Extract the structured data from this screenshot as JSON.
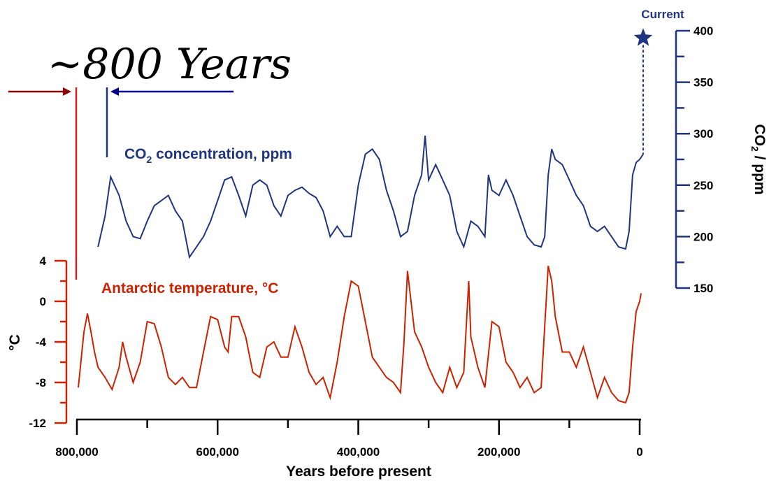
{
  "chart_data": {
    "type": "line",
    "annotation": "~800 Years",
    "xlabel": "Years before present",
    "x_ticks": [
      "800,000",
      "600,000",
      "400,000",
      "200,000",
      "0"
    ],
    "x_tick_values": [
      800000,
      600000,
      400000,
      200000,
      0
    ],
    "xlim": [
      800000,
      0
    ],
    "colors": {
      "co2": "#1f3580",
      "temperature": "#cc2200",
      "lag_marker_red": "#8b0000",
      "lag_marker_blue": "#00008b"
    },
    "co2": {
      "label": "CO",
      "label_sub": "2",
      "label_rest": " concentration, ppm",
      "axis_label": "CO",
      "axis_label_sub": "2",
      "axis_label_rest": " / ppm",
      "ylim": [
        150,
        400
      ],
      "ticks": [
        "400",
        "350",
        "300",
        "250",
        "200",
        "150"
      ],
      "tick_values": [
        400,
        350,
        300,
        250,
        200,
        150
      ],
      "current_label": "Current",
      "current_value": 393,
      "points": [
        [
          770000,
          190
        ],
        [
          760000,
          220
        ],
        [
          752000,
          258
        ],
        [
          740000,
          240
        ],
        [
          730000,
          215
        ],
        [
          720000,
          200
        ],
        [
          710000,
          198
        ],
        [
          700000,
          215
        ],
        [
          690000,
          230
        ],
        [
          680000,
          235
        ],
        [
          670000,
          240
        ],
        [
          660000,
          225
        ],
        [
          650000,
          215
        ],
        [
          640000,
          180
        ],
        [
          630000,
          190
        ],
        [
          620000,
          200
        ],
        [
          610000,
          215
        ],
        [
          600000,
          235
        ],
        [
          590000,
          255
        ],
        [
          580000,
          258
        ],
        [
          570000,
          240
        ],
        [
          560000,
          220
        ],
        [
          550000,
          250
        ],
        [
          540000,
          255
        ],
        [
          530000,
          250
        ],
        [
          520000,
          230
        ],
        [
          510000,
          220
        ],
        [
          500000,
          240
        ],
        [
          490000,
          245
        ],
        [
          480000,
          248
        ],
        [
          470000,
          242
        ],
        [
          460000,
          238
        ],
        [
          450000,
          225
        ],
        [
          440000,
          200
        ],
        [
          430000,
          210
        ],
        [
          420000,
          200
        ],
        [
          410000,
          200
        ],
        [
          400000,
          250
        ],
        [
          390000,
          280
        ],
        [
          380000,
          285
        ],
        [
          370000,
          275
        ],
        [
          360000,
          245
        ],
        [
          350000,
          225
        ],
        [
          340000,
          200
        ],
        [
          330000,
          205
        ],
        [
          320000,
          240
        ],
        [
          310000,
          260
        ],
        [
          305000,
          298
        ],
        [
          300000,
          255
        ],
        [
          290000,
          270
        ],
        [
          280000,
          255
        ],
        [
          270000,
          240
        ],
        [
          260000,
          205
        ],
        [
          250000,
          190
        ],
        [
          240000,
          215
        ],
        [
          230000,
          210
        ],
        [
          220000,
          200
        ],
        [
          215000,
          260
        ],
        [
          210000,
          245
        ],
        [
          200000,
          240
        ],
        [
          190000,
          255
        ],
        [
          180000,
          240
        ],
        [
          170000,
          220
        ],
        [
          160000,
          200
        ],
        [
          150000,
          192
        ],
        [
          140000,
          190
        ],
        [
          135000,
          200
        ],
        [
          130000,
          260
        ],
        [
          125000,
          285
        ],
        [
          120000,
          275
        ],
        [
          110000,
          270
        ],
        [
          100000,
          255
        ],
        [
          90000,
          240
        ],
        [
          80000,
          230
        ],
        [
          70000,
          210
        ],
        [
          60000,
          205
        ],
        [
          50000,
          210
        ],
        [
          40000,
          200
        ],
        [
          30000,
          190
        ],
        [
          20000,
          188
        ],
        [
          15000,
          205
        ],
        [
          10000,
          260
        ],
        [
          5000,
          272
        ],
        [
          0,
          275
        ],
        [
          -5000,
          280
        ]
      ]
    },
    "temperature": {
      "label": "Antarctic temperature, °C",
      "axis_label": "°C",
      "ylim": [
        -12,
        4
      ],
      "ticks": [
        "4",
        "0",
        "-4",
        "-8",
        "-12"
      ],
      "tick_values": [
        4,
        0,
        -4,
        -8,
        -12
      ],
      "points": [
        [
          798000,
          -8.5
        ],
        [
          790000,
          -3.0
        ],
        [
          785000,
          -1.2
        ],
        [
          780000,
          -3.0
        ],
        [
          775000,
          -5.0
        ],
        [
          770000,
          -6.5
        ],
        [
          760000,
          -7.5
        ],
        [
          750000,
          -8.7
        ],
        [
          740000,
          -6.5
        ],
        [
          735000,
          -4.0
        ],
        [
          730000,
          -5.5
        ],
        [
          720000,
          -8.0
        ],
        [
          710000,
          -6.0
        ],
        [
          705000,
          -4.0
        ],
        [
          700000,
          -2.0
        ],
        [
          690000,
          -2.2
        ],
        [
          680000,
          -4.5
        ],
        [
          670000,
          -7.5
        ],
        [
          660000,
          -8.2
        ],
        [
          650000,
          -7.5
        ],
        [
          640000,
          -8.5
        ],
        [
          630000,
          -8.5
        ],
        [
          620000,
          -5.0
        ],
        [
          610000,
          -1.5
        ],
        [
          600000,
          -1.8
        ],
        [
          590000,
          -4.5
        ],
        [
          585000,
          -5.0
        ],
        [
          580000,
          -1.5
        ],
        [
          570000,
          -1.5
        ],
        [
          560000,
          -3.5
        ],
        [
          550000,
          -7.0
        ],
        [
          540000,
          -7.5
        ],
        [
          530000,
          -4.5
        ],
        [
          520000,
          -4.0
        ],
        [
          510000,
          -5.5
        ],
        [
          500000,
          -5.5
        ],
        [
          490000,
          -2.5
        ],
        [
          480000,
          -4.5
        ],
        [
          470000,
          -7.0
        ],
        [
          460000,
          -8.2
        ],
        [
          450000,
          -7.5
        ],
        [
          440000,
          -9.5
        ],
        [
          430000,
          -6.0
        ],
        [
          420000,
          -1.5
        ],
        [
          410000,
          2.0
        ],
        [
          400000,
          1.5
        ],
        [
          390000,
          -2.0
        ],
        [
          380000,
          -5.5
        ],
        [
          370000,
          -6.5
        ],
        [
          360000,
          -7.5
        ],
        [
          350000,
          -8.0
        ],
        [
          340000,
          -9.0
        ],
        [
          335000,
          -4.0
        ],
        [
          330000,
          3.0
        ],
        [
          320000,
          -3.0
        ],
        [
          310000,
          -4.5
        ],
        [
          300000,
          -6.5
        ],
        [
          290000,
          -8.0
        ],
        [
          280000,
          -9.0
        ],
        [
          270000,
          -6.5
        ],
        [
          260000,
          -8.5
        ],
        [
          250000,
          -7.0
        ],
        [
          243000,
          2.0
        ],
        [
          240000,
          -3.5
        ],
        [
          230000,
          -6.5
        ],
        [
          220000,
          -8.5
        ],
        [
          210000,
          -2.0
        ],
        [
          200000,
          -2.5
        ],
        [
          190000,
          -6.0
        ],
        [
          180000,
          -7.0
        ],
        [
          170000,
          -8.5
        ],
        [
          160000,
          -7.5
        ],
        [
          150000,
          -9.0
        ],
        [
          140000,
          -8.5
        ],
        [
          130000,
          3.5
        ],
        [
          125000,
          2.0
        ],
        [
          120000,
          -1.5
        ],
        [
          110000,
          -5.0
        ],
        [
          100000,
          -5.0
        ],
        [
          90000,
          -6.5
        ],
        [
          80000,
          -4.5
        ],
        [
          70000,
          -7.0
        ],
        [
          60000,
          -9.5
        ],
        [
          50000,
          -7.5
        ],
        [
          40000,
          -9.0
        ],
        [
          30000,
          -9.8
        ],
        [
          20000,
          -10.0
        ],
        [
          15000,
          -9.0
        ],
        [
          10000,
          -4.5
        ],
        [
          5000,
          -1.0
        ],
        [
          0,
          0.0
        ],
        [
          -2000,
          0.8
        ]
      ]
    }
  }
}
